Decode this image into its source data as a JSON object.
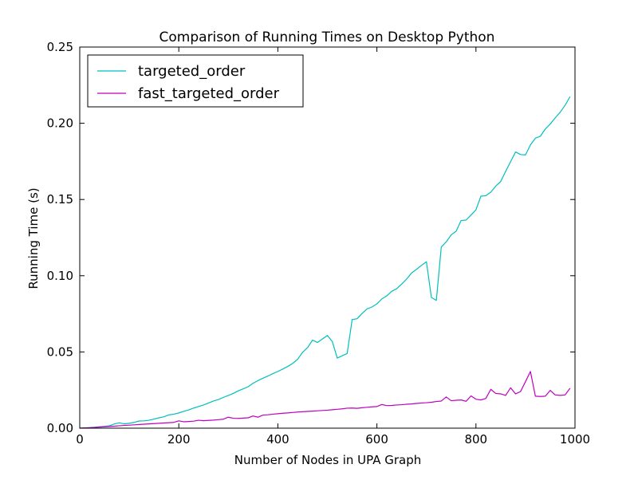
{
  "chart_data": {
    "type": "line",
    "title": "Comparison of Running Times on Desktop Python",
    "xlabel": "Number of Nodes in UPA Graph",
    "ylabel": "Running Time (s)",
    "xlim": [
      0,
      1000
    ],
    "ylim": [
      0,
      0.25
    ],
    "xticks": [
      "0",
      "200",
      "400",
      "600",
      "800",
      "1000"
    ],
    "yticks": [
      "0.00",
      "0.05",
      "0.10",
      "0.15",
      "0.20",
      "0.25"
    ],
    "grid": false,
    "legend_position": "top-left",
    "x": [
      0,
      10,
      20,
      30,
      40,
      50,
      60,
      70,
      80,
      90,
      100,
      110,
      120,
      130,
      140,
      150,
      160,
      170,
      180,
      190,
      200,
      210,
      220,
      230,
      240,
      250,
      260,
      270,
      280,
      290,
      300,
      310,
      320,
      330,
      340,
      350,
      360,
      370,
      380,
      390,
      400,
      410,
      420,
      430,
      440,
      450,
      460,
      470,
      480,
      490,
      500,
      510,
      520,
      530,
      540,
      550,
      560,
      570,
      580,
      590,
      600,
      610,
      620,
      630,
      640,
      650,
      660,
      670,
      680,
      690,
      700,
      710,
      720,
      730,
      740,
      750,
      760,
      770,
      780,
      790,
      800,
      810,
      820,
      830,
      840,
      850,
      860,
      870,
      880,
      890,
      900,
      910,
      920,
      930,
      940,
      950,
      960,
      970,
      980,
      990
    ],
    "series": [
      {
        "name": "targeted_order",
        "color": "#00bfbf",
        "values": [
          0.0,
          0.0002,
          0.0004,
          0.0006,
          0.0009,
          0.0012,
          0.0016,
          0.0028,
          0.0035,
          0.0028,
          0.0032,
          0.0038,
          0.0047,
          0.0048,
          0.0052,
          0.006,
          0.0068,
          0.0075,
          0.0087,
          0.0092,
          0.01,
          0.011,
          0.012,
          0.0132,
          0.0142,
          0.0152,
          0.0165,
          0.0178,
          0.0188,
          0.0202,
          0.0215,
          0.0228,
          0.0245,
          0.0258,
          0.0272,
          0.0295,
          0.0312,
          0.0328,
          0.0342,
          0.0358,
          0.0372,
          0.0388,
          0.0405,
          0.0425,
          0.0452,
          0.0498,
          0.0528,
          0.0578,
          0.0562,
          0.0585,
          0.0608,
          0.0568,
          0.046,
          0.0475,
          0.049,
          0.0712,
          0.0718,
          0.0752,
          0.0782,
          0.0795,
          0.0815,
          0.0848,
          0.0868,
          0.0898,
          0.0915,
          0.0945,
          0.0978,
          0.1018,
          0.1042,
          0.1068,
          0.1092,
          0.0858,
          0.0838,
          0.1188,
          0.1222,
          0.1268,
          0.1292,
          0.1362,
          0.1365,
          0.1398,
          0.1432,
          0.1522,
          0.1525,
          0.1548,
          0.1588,
          0.1618,
          0.1685,
          0.1748,
          0.1812,
          0.1795,
          0.1792,
          0.1858,
          0.1902,
          0.1915,
          0.1962,
          0.1995,
          0.2035,
          0.2072,
          0.2118,
          0.2175
        ]
      },
      {
        "name": "fast_targeted_order",
        "color": "#bf00bf",
        "values": [
          0.0,
          0.0002,
          0.0003,
          0.0005,
          0.0007,
          0.0009,
          0.0011,
          0.0013,
          0.0016,
          0.0018,
          0.002,
          0.0022,
          0.0024,
          0.0026,
          0.0028,
          0.003,
          0.0032,
          0.0034,
          0.0036,
          0.0038,
          0.0048,
          0.0042,
          0.0044,
          0.0046,
          0.0052,
          0.0049,
          0.0051,
          0.0053,
          0.0056,
          0.0059,
          0.0072,
          0.0065,
          0.0064,
          0.0066,
          0.0068,
          0.008,
          0.0072,
          0.0086,
          0.0088,
          0.0092,
          0.0095,
          0.0098,
          0.01,
          0.0103,
          0.0106,
          0.0108,
          0.011,
          0.0112,
          0.0114,
          0.0116,
          0.0118,
          0.0121,
          0.0124,
          0.0127,
          0.0131,
          0.0132,
          0.013,
          0.0134,
          0.0137,
          0.014,
          0.0142,
          0.0155,
          0.0148,
          0.0149,
          0.0152,
          0.0154,
          0.0157,
          0.0159,
          0.0162,
          0.0165,
          0.0167,
          0.017,
          0.0175,
          0.0178,
          0.0205,
          0.018,
          0.0183,
          0.0185,
          0.0176,
          0.0212,
          0.019,
          0.0185,
          0.0195,
          0.0255,
          0.0228,
          0.0225,
          0.0215,
          0.0265,
          0.0225,
          0.024,
          0.0305,
          0.0372,
          0.021,
          0.0208,
          0.021,
          0.0248,
          0.0218,
          0.0215,
          0.0218,
          0.0262
        ]
      }
    ]
  }
}
